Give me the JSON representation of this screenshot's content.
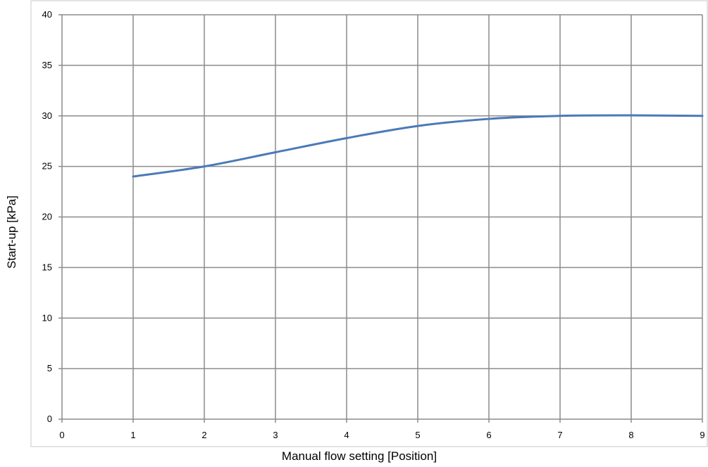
{
  "chart_data": {
    "type": "line",
    "xlabel": "Manual flow setting [Position]",
    "ylabel": "Start-up [kPa]",
    "xlim": [
      0,
      9
    ],
    "ylim": [
      0,
      40
    ],
    "x_ticks": [
      "0",
      "1",
      "2",
      "3",
      "4",
      "5",
      "6",
      "7",
      "8",
      "9"
    ],
    "y_ticks": [
      "0",
      "5",
      "10",
      "15",
      "20",
      "25",
      "30",
      "35",
      "40"
    ],
    "grid": true,
    "legend": "none",
    "series": [
      {
        "x": [
          1,
          2,
          3,
          4,
          5,
          6,
          7,
          8,
          9
        ],
        "values": [
          24,
          25,
          26.4,
          27.8,
          29,
          29.7,
          30,
          30.05,
          30
        ],
        "color": "#4a7ab8"
      }
    ]
  }
}
